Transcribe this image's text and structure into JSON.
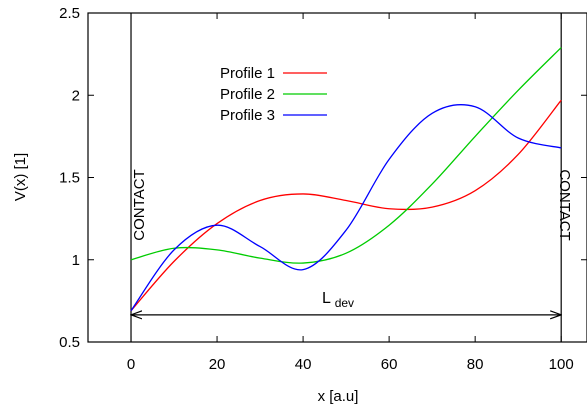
{
  "chart_data": {
    "type": "line",
    "title": "",
    "xlabel": "x [a.u]",
    "ylabel": "V(x) [1]",
    "xlim": [
      -10,
      106
    ],
    "ylim": [
      0.5,
      2.5
    ],
    "x_ticks": [
      0,
      20,
      40,
      60,
      80,
      100
    ],
    "y_ticks": [
      0.5,
      1,
      1.5,
      2,
      2.5
    ],
    "x_tick_labels": [
      "0",
      "20",
      "40",
      "60",
      "80",
      "100"
    ],
    "y_tick_labels": [
      "0.5",
      "1",
      "1.5",
      "2",
      "2.5"
    ],
    "grid": false,
    "legend_position": "top-left",
    "series": [
      {
        "name": "Profile 1",
        "color": "#ff0000",
        "x": [
          0,
          10,
          20,
          30,
          40,
          50,
          60,
          70,
          80,
          90,
          100
        ],
        "y": [
          0.69,
          0.99,
          1.22,
          1.36,
          1.4,
          1.36,
          1.31,
          1.32,
          1.42,
          1.64,
          1.97
        ]
      },
      {
        "name": "Profile 2",
        "color": "#00cc00",
        "x": [
          0,
          10,
          20,
          30,
          40,
          50,
          60,
          70,
          80,
          90,
          100
        ],
        "y": [
          1.0,
          1.07,
          1.06,
          1.01,
          0.98,
          1.04,
          1.21,
          1.46,
          1.75,
          2.03,
          2.29
        ]
      },
      {
        "name": "Profile 3",
        "color": "#0000ff",
        "x": [
          0,
          10,
          20,
          30,
          40,
          50,
          60,
          70,
          80,
          90,
          100
        ],
        "y": [
          0.69,
          1.06,
          1.21,
          1.08,
          0.94,
          1.18,
          1.61,
          1.89,
          1.93,
          1.74,
          1.68
        ]
      }
    ],
    "annotations": {
      "left_boundary_label": "CONTACT",
      "right_boundary_label": "CONTACT",
      "length_label_main": "L",
      "length_label_sub": "dev",
      "length_arrow_from": 0,
      "length_arrow_to": 100,
      "length_arrow_y": 0.665,
      "left_boundary_x": 0,
      "right_boundary_x": 100
    }
  }
}
